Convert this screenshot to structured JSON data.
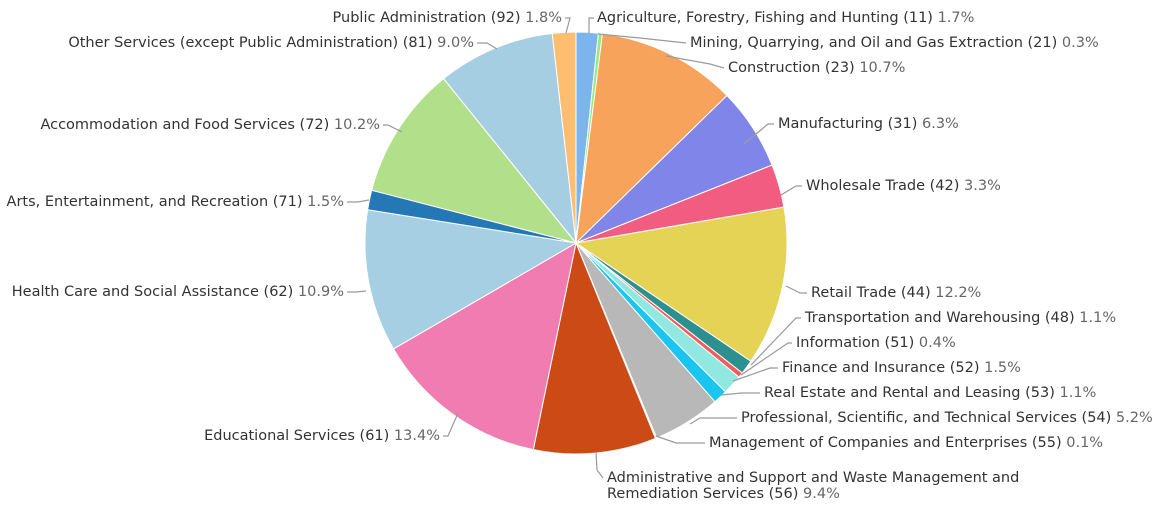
{
  "chart_data": {
    "type": "pie",
    "title": "",
    "start": "top",
    "direction": "clockwise",
    "slices": [
      {
        "label": "Agriculture, Forestry, Fishing and Hunting (11)",
        "value": 1.7,
        "pct": "1.7%",
        "color": "#7cb5ec"
      },
      {
        "label": "Mining, Quarrying, and Oil and Gas Extraction (21)",
        "value": 0.3,
        "pct": "0.3%",
        "color": "#90ed7d"
      },
      {
        "label": "Construction (23)",
        "value": 10.7,
        "pct": "10.7%",
        "color": "#f7a35c"
      },
      {
        "label": "Manufacturing (31)",
        "value": 6.3,
        "pct": "6.3%",
        "color": "#8085e9"
      },
      {
        "label": "Wholesale Trade (42)",
        "value": 3.3,
        "pct": "3.3%",
        "color": "#f15c80"
      },
      {
        "label": "Retail Trade (44)",
        "value": 12.2,
        "pct": "12.2%",
        "color": "#e4d354"
      },
      {
        "label": "Transportation and Warehousing (48)",
        "value": 1.1,
        "pct": "1.1%",
        "color": "#2b908f"
      },
      {
        "label": "Information (51)",
        "value": 0.4,
        "pct": "0.4%",
        "color": "#f45b5b"
      },
      {
        "label": "Finance and Insurance (52)",
        "value": 1.5,
        "pct": "1.5%",
        "color": "#91e8e1"
      },
      {
        "label": "Real Estate and Rental and Leasing (53)",
        "value": 1.1,
        "pct": "1.1%",
        "color": "#1ac6f0"
      },
      {
        "label": "Professional, Scientific, and Technical Services (54)",
        "value": 5.2,
        "pct": "5.2%",
        "color": "#b8b8b8"
      },
      {
        "label": "Management of Companies and Enterprises (55)",
        "value": 0.1,
        "pct": "0.1%",
        "color": "#f6d37a"
      },
      {
        "label": "Administrative and Support and Waste Management and Remediation Services (56)",
        "label_lines": [
          "Administrative and Support and Waste Management and",
          "Remediation Services (56)"
        ],
        "value": 9.4,
        "pct": "9.4%",
        "color": "#cc4a16"
      },
      {
        "label": "Educational Services (61)",
        "value": 13.4,
        "pct": "13.4%",
        "color": "#f07cb2"
      },
      {
        "label": "Health Care and Social Assistance (62)",
        "value": 10.9,
        "pct": "10.9%",
        "color": "#a7cfe3"
      },
      {
        "label": "Arts, Entertainment, and Recreation (71)",
        "value": 1.5,
        "pct": "1.5%",
        "color": "#2378b5"
      },
      {
        "label": "Accommodation and Food Services (72)",
        "value": 10.2,
        "pct": "10.2%",
        "color": "#b2df8a"
      },
      {
        "label": "Other Services (except Public Administration) (81)",
        "value": 9.0,
        "pct": "9.0%",
        "color": "#a6cee3"
      },
      {
        "label": "Public Administration (92)",
        "value": 1.8,
        "pct": "1.8%",
        "color": "#fdbf6f"
      }
    ]
  }
}
